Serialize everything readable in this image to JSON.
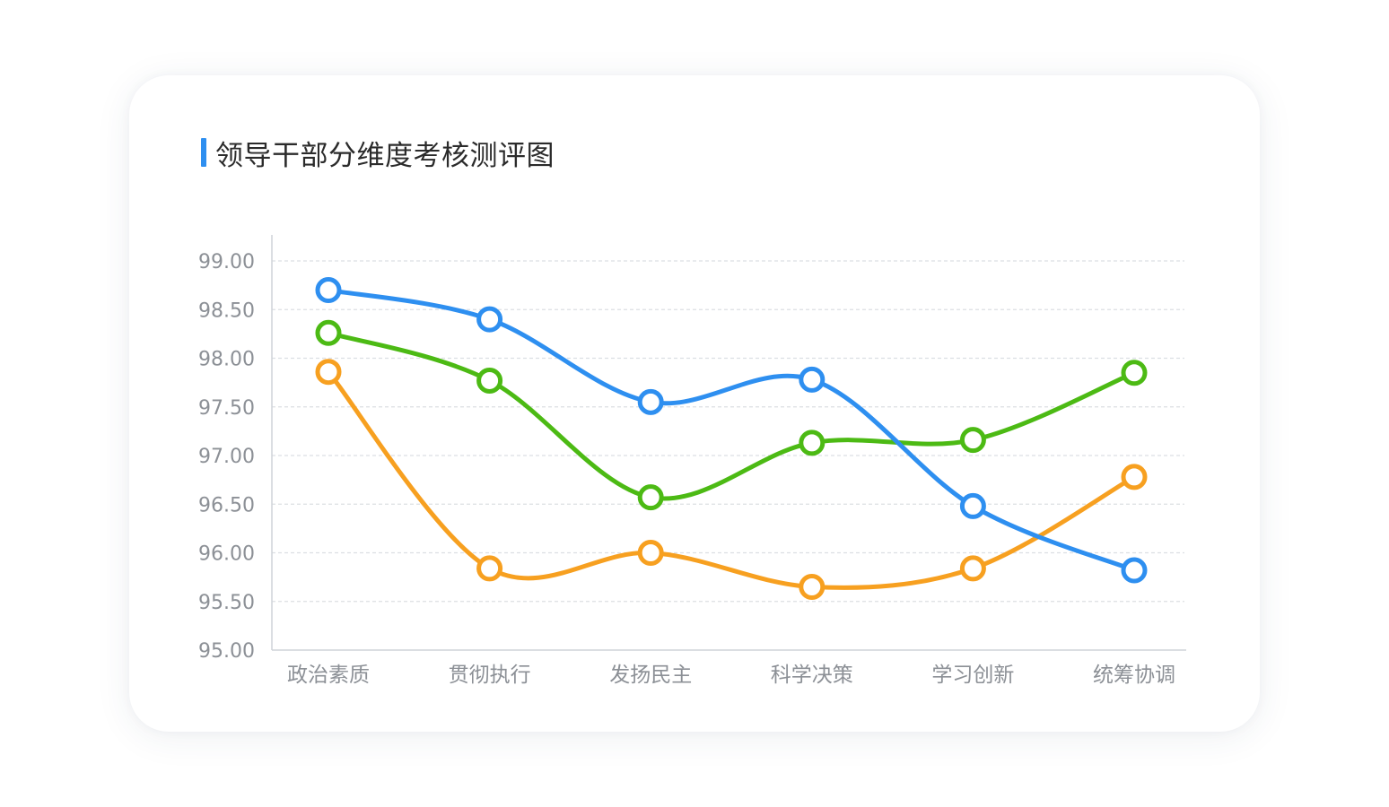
{
  "colors": {
    "accent": "#2e8ff0",
    "series_blue": "#2e8ff0",
    "series_green": "#4cba14",
    "series_orange": "#f7a020",
    "axis": "#cfd3d8",
    "grid": "#dcdfe3",
    "tick_text": "#8c9096",
    "title_text": "#2b2b2b"
  },
  "chart_data": {
    "type": "line",
    "title": "领导干部分维度考核测评图",
    "categories": [
      "政治素质",
      "贯彻执行",
      "发扬民主",
      "科学决策",
      "学习创新",
      "统筹协调"
    ],
    "y_ticks": [
      "99.00",
      "98.50",
      "98.00",
      "97.50",
      "97.00",
      "96.50",
      "96.00",
      "95.50",
      "95.00"
    ],
    "ylim": [
      95,
      99
    ],
    "grid": true,
    "smooth": true,
    "series": [
      {
        "color": "#2e8ff0",
        "values": [
          98.7,
          98.4,
          97.55,
          97.78,
          96.48,
          95.82
        ]
      },
      {
        "color": "#4cba14",
        "values": [
          98.26,
          97.77,
          96.57,
          97.13,
          97.16,
          97.85
        ]
      },
      {
        "color": "#f7a020",
        "values": [
          97.86,
          95.84,
          96.0,
          95.65,
          95.84,
          96.78
        ]
      }
    ]
  }
}
